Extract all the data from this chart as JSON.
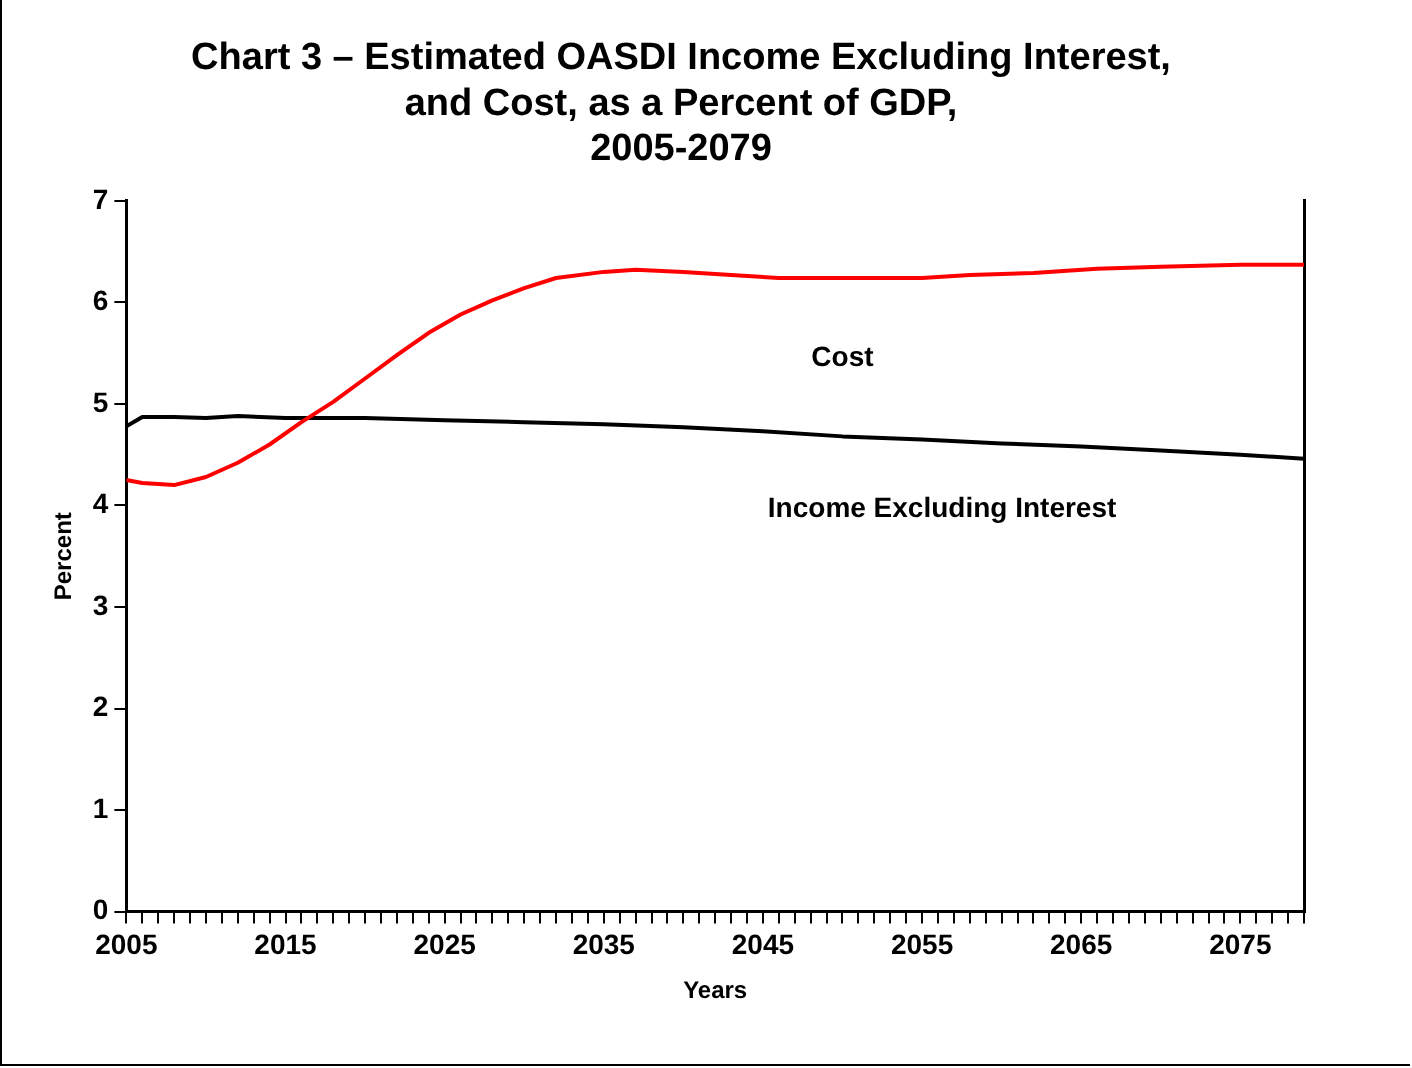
{
  "chart_data": {
    "type": "line",
    "title": "Chart 3 – Estimated OASDI Income Excluding Interest,\nand Cost, as a Percent of GDP,\n2005-2079",
    "xlabel": "Years",
    "ylabel": "Percent",
    "xlim": [
      2005,
      2079
    ],
    "xticks": [
      2005,
      {
        "value": 2006,
        "label": null
      },
      {
        "value": 2007,
        "label": null
      },
      {
        "value": 2008,
        "label": null
      },
      {
        "value": 2009,
        "label": null
      },
      {
        "value": 2010,
        "label": null
      },
      {
        "value": 2011,
        "label": null
      },
      {
        "value": 2012,
        "label": null
      },
      {
        "value": 2013,
        "label": null
      },
      {
        "value": 2014,
        "label": null
      },
      2015,
      {
        "value": 2016,
        "label": null
      },
      {
        "value": 2017,
        "label": null
      },
      {
        "value": 2018,
        "label": null
      },
      {
        "value": 2019,
        "label": null
      },
      {
        "value": 2020,
        "label": null
      },
      {
        "value": 2021,
        "label": null
      },
      {
        "value": 2022,
        "label": null
      },
      {
        "value": 2023,
        "label": null
      },
      {
        "value": 2024,
        "label": null
      },
      2025,
      {
        "value": 2026,
        "label": null
      },
      {
        "value": 2027,
        "label": null
      },
      {
        "value": 2028,
        "label": null
      },
      {
        "value": 2029,
        "label": null
      },
      {
        "value": 2030,
        "label": null
      },
      {
        "value": 2031,
        "label": null
      },
      {
        "value": 2032,
        "label": null
      },
      {
        "value": 2033,
        "label": null
      },
      {
        "value": 2034,
        "label": null
      },
      2035,
      {
        "value": 2036,
        "label": null
      },
      {
        "value": 2037,
        "label": null
      },
      {
        "value": 2038,
        "label": null
      },
      {
        "value": 2039,
        "label": null
      },
      {
        "value": 2040,
        "label": null
      },
      {
        "value": 2041,
        "label": null
      },
      {
        "value": 2042,
        "label": null
      },
      {
        "value": 2043,
        "label": null
      },
      {
        "value": 2044,
        "label": null
      },
      2045,
      {
        "value": 2046,
        "label": null
      },
      {
        "value": 2047,
        "label": null
      },
      {
        "value": 2048,
        "label": null
      },
      {
        "value": 2049,
        "label": null
      },
      {
        "value": 2050,
        "label": null
      },
      {
        "value": 2051,
        "label": null
      },
      {
        "value": 2052,
        "label": null
      },
      {
        "value": 2053,
        "label": null
      },
      {
        "value": 2054,
        "label": null
      },
      2055,
      {
        "value": 2056,
        "label": null
      },
      {
        "value": 2057,
        "label": null
      },
      {
        "value": 2058,
        "label": null
      },
      {
        "value": 2059,
        "label": null
      },
      {
        "value": 2060,
        "label": null
      },
      {
        "value": 2061,
        "label": null
      },
      {
        "value": 2062,
        "label": null
      },
      {
        "value": 2063,
        "label": null
      },
      {
        "value": 2064,
        "label": null
      },
      2065,
      {
        "value": 2066,
        "label": null
      },
      {
        "value": 2067,
        "label": null
      },
      {
        "value": 2068,
        "label": null
      },
      {
        "value": 2069,
        "label": null
      },
      {
        "value": 2070,
        "label": null
      },
      {
        "value": 2071,
        "label": null
      },
      {
        "value": 2072,
        "label": null
      },
      {
        "value": 2073,
        "label": null
      },
      {
        "value": 2074,
        "label": null
      },
      2075,
      {
        "value": 2076,
        "label": null
      },
      {
        "value": 2077,
        "label": null
      },
      {
        "value": 2078,
        "label": null
      },
      {
        "value": 2079,
        "label": null
      }
    ],
    "ylim": [
      0,
      7
    ],
    "yticks": [
      0,
      1,
      2,
      3,
      4,
      5,
      6,
      7
    ],
    "grid": false,
    "legend": false,
    "marker": "none",
    "series": [
      {
        "name": "Cost",
        "color": "#ff0000",
        "x": [
          2005,
          2006,
          2008,
          2010,
          2012,
          2014,
          2016,
          2018,
          2020,
          2022,
          2024,
          2026,
          2028,
          2030,
          2032,
          2035,
          2037,
          2040,
          2043,
          2046,
          2050,
          2055,
          2058,
          2062,
          2066,
          2070,
          2075,
          2079
        ],
        "values": [
          4.25,
          4.22,
          4.2,
          4.28,
          4.42,
          4.6,
          4.82,
          5.02,
          5.25,
          5.48,
          5.7,
          5.88,
          6.02,
          6.14,
          6.24,
          6.3,
          6.32,
          6.3,
          6.27,
          6.24,
          6.24,
          6.24,
          6.27,
          6.29,
          6.33,
          6.35,
          6.37,
          6.37
        ]
      },
      {
        "name": "Income Excluding Interest",
        "color": "#000000",
        "x": [
          2005,
          2006,
          2008,
          2010,
          2012,
          2015,
          2020,
          2025,
          2030,
          2035,
          2040,
          2045,
          2050,
          2055,
          2060,
          2065,
          2070,
          2075,
          2079
        ],
        "values": [
          4.78,
          4.87,
          4.87,
          4.86,
          4.88,
          4.86,
          4.86,
          4.84,
          4.82,
          4.8,
          4.77,
          4.73,
          4.68,
          4.65,
          4.61,
          4.58,
          4.54,
          4.5,
          4.46
        ]
      }
    ]
  }
}
